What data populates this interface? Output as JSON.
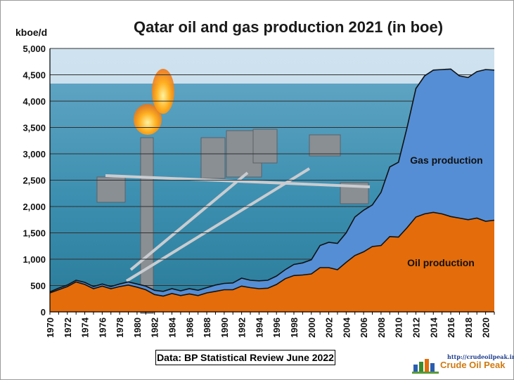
{
  "chart_data": {
    "type": "area",
    "title": "Qatar oil and gas production 2021 (in boe)",
    "ylabel": "kboe/d",
    "xlabel": "",
    "ylim": [
      0,
      5000
    ],
    "yticks": [
      0,
      500,
      1000,
      1500,
      2000,
      2500,
      3000,
      3500,
      4000,
      4500,
      5000
    ],
    "ytick_labels": [
      "0",
      "500",
      "1,000",
      "1,500",
      "2,000",
      "2,500",
      "3,000",
      "3,500",
      "4,000",
      "4,500",
      "5,000"
    ],
    "xtick_labels": [
      "1970",
      "1972",
      "1974",
      "1976",
      "1978",
      "1980",
      "1982",
      "1984",
      "1986",
      "1988",
      "1990",
      "1992",
      "1994",
      "1996",
      "1998",
      "2000",
      "2002",
      "2004",
      "2006",
      "2008",
      "2010",
      "2012",
      "2014",
      "2016",
      "2018",
      "2020"
    ],
    "x": [
      1970,
      1971,
      1972,
      1973,
      1974,
      1975,
      1976,
      1977,
      1978,
      1979,
      1980,
      1981,
      1982,
      1983,
      1984,
      1985,
      1986,
      1987,
      1988,
      1989,
      1990,
      1991,
      1992,
      1993,
      1994,
      1995,
      1996,
      1997,
      1998,
      1999,
      2000,
      2001,
      2002,
      2003,
      2004,
      2005,
      2006,
      2007,
      2008,
      2009,
      2010,
      2011,
      2012,
      2013,
      2014,
      2015,
      2016,
      2017,
      2018,
      2019,
      2020,
      2021
    ],
    "stacked": true,
    "grid": true,
    "series": [
      {
        "name": "Oil production",
        "color": "#e46c0a",
        "values": [
          360,
          420,
          480,
          570,
          520,
          440,
          490,
          440,
          480,
          510,
          470,
          420,
          330,
          300,
          350,
          310,
          340,
          310,
          360,
          390,
          420,
          420,
          490,
          460,
          440,
          450,
          520,
          630,
          690,
          700,
          720,
          840,
          840,
          800,
          940,
          1070,
          1140,
          1240,
          1260,
          1430,
          1420,
          1600,
          1800,
          1860,
          1890,
          1860,
          1810,
          1780,
          1750,
          1780,
          1720,
          1740
        ]
      },
      {
        "name": "Gas production",
        "color": "#558ed5",
        "values": [
          20,
          30,
          30,
          30,
          40,
          40,
          40,
          40,
          50,
          60,
          60,
          70,
          80,
          90,
          90,
          90,
          100,
          100,
          100,
          120,
          120,
          130,
          150,
          140,
          150,
          150,
          160,
          170,
          210,
          230,
          270,
          420,
          480,
          500,
          560,
          730,
          790,
          790,
          1010,
          1320,
          1420,
          1910,
          2440,
          2620,
          2700,
          2740,
          2800,
          2700,
          2700,
          2780,
          2880,
          2850
        ]
      }
    ],
    "annotations": [
      "Gas production",
      "Oil production"
    ],
    "colors": {
      "gas": "#558ed5",
      "oil": "#e46c0a",
      "grid": "#303030"
    }
  },
  "source_note": "Data: BP Statistical Review June 2022",
  "logo": {
    "url": "http://crudeoilpeak.info",
    "name": "Crude Oil Peak"
  }
}
